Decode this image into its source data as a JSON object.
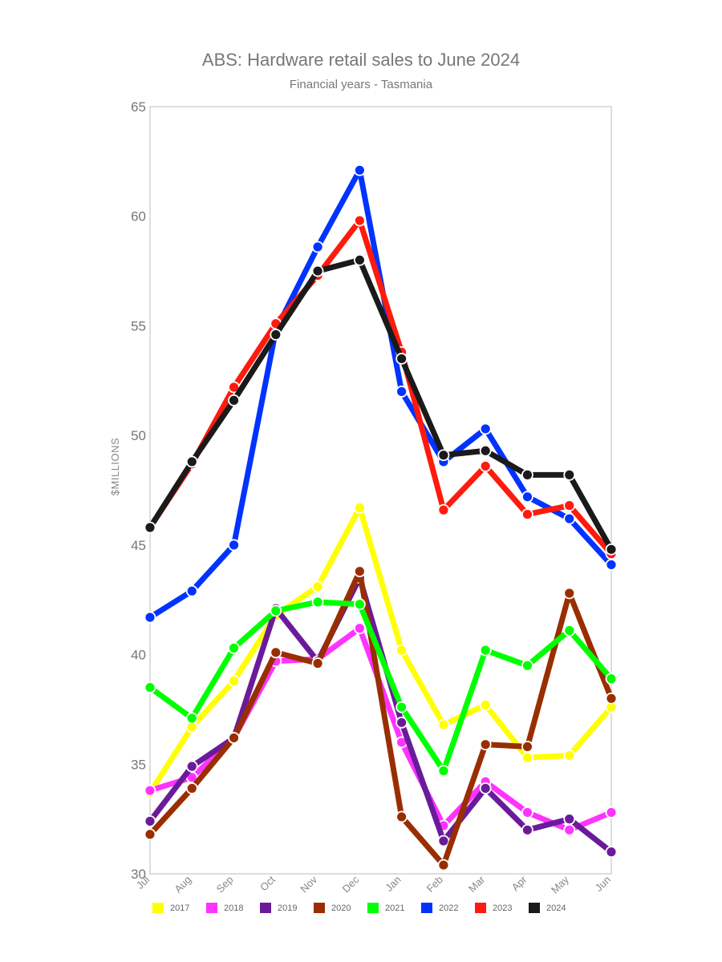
{
  "chart_data": {
    "type": "line",
    "title": "ABS: Hardware retail sales to June 2024",
    "subtitle": "Financial years - Tasmania",
    "xlabel": "",
    "ylabel": "$MILLIONS",
    "ylim": [
      30,
      65
    ],
    "yticks": [
      30,
      35,
      40,
      45,
      50,
      55,
      60,
      65
    ],
    "grid": false,
    "legend_position": "bottom",
    "categories": [
      "Jul",
      "Aug",
      "Sep",
      "Oct",
      "Nov",
      "Dec",
      "Jan",
      "Feb",
      "Mar",
      "Apr",
      "May",
      "Jun"
    ],
    "series": [
      {
        "name": "2017",
        "color": "#ffff00",
        "values": [
          33.7,
          36.7,
          38.8,
          41.8,
          43.1,
          46.7,
          40.2,
          36.8,
          37.7,
          35.3,
          35.4,
          37.6
        ]
      },
      {
        "name": "2018",
        "color": "#ff33ff",
        "values": [
          33.8,
          34.4,
          36.2,
          39.7,
          39.8,
          41.2,
          36.0,
          32.2,
          34.2,
          32.8,
          32.0,
          32.8
        ]
      },
      {
        "name": "2019",
        "color": "#6a1b9a",
        "values": [
          32.4,
          34.9,
          36.2,
          42.1,
          39.7,
          43.5,
          36.9,
          31.5,
          33.9,
          32.0,
          32.5,
          31.0
        ]
      },
      {
        "name": "2020",
        "color": "#992e00",
        "values": [
          31.8,
          33.9,
          36.2,
          40.1,
          39.6,
          43.8,
          32.6,
          30.4,
          35.9,
          35.8,
          42.8,
          38.0
        ]
      },
      {
        "name": "2021",
        "color": "#00ff00",
        "values": [
          38.5,
          37.1,
          40.3,
          42.0,
          42.4,
          42.3,
          37.6,
          34.7,
          40.2,
          39.5,
          41.1,
          38.9
        ]
      },
      {
        "name": "2022",
        "color": "#0033ff",
        "values": [
          41.7,
          42.9,
          45.0,
          54.8,
          58.6,
          62.1,
          52.0,
          48.8,
          50.3,
          47.2,
          46.2,
          44.1
        ]
      },
      {
        "name": "2023",
        "color": "#ff1a0d",
        "values": [
          45.8,
          48.7,
          52.2,
          55.1,
          57.3,
          59.8,
          53.8,
          46.6,
          48.6,
          46.4,
          46.8,
          44.6
        ]
      },
      {
        "name": "2024",
        "color": "#1a1a1a",
        "values": [
          45.8,
          48.8,
          51.6,
          54.6,
          57.5,
          58.0,
          53.5,
          49.1,
          49.3,
          48.2,
          48.2,
          44.8
        ]
      }
    ]
  }
}
